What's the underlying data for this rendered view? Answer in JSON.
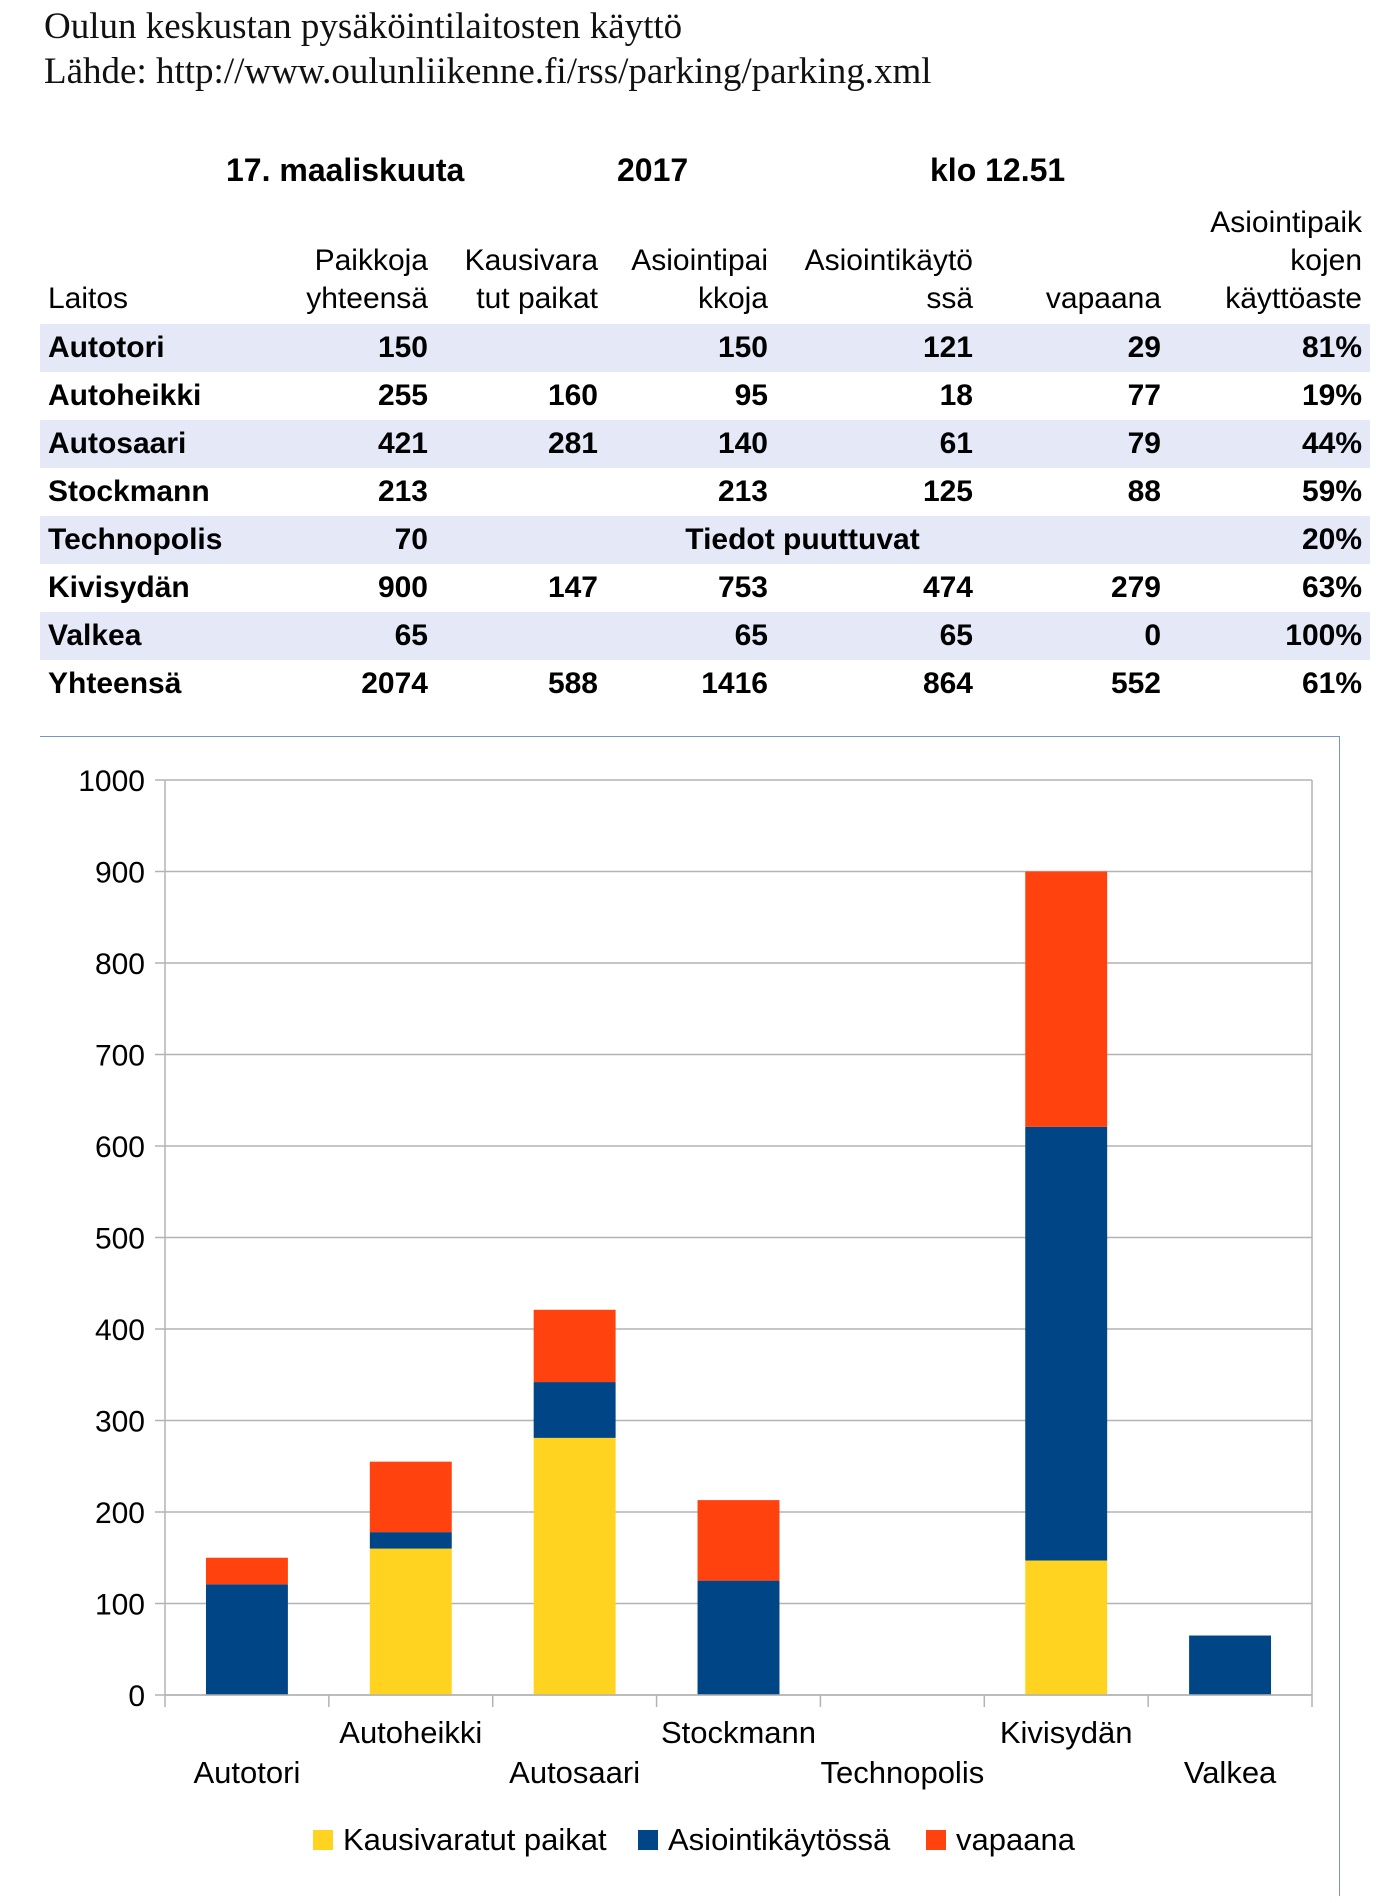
{
  "header": {
    "title": "Oulun keskustan pysäköintilaitosten käyttö",
    "source": "Lähde: http://www.oulunliikenne.fi/rss/parking/parking.xml"
  },
  "dateline": {
    "date": "17. maaliskuuta",
    "year": "2017",
    "time": "klo  12.51"
  },
  "table": {
    "columns": [
      [
        "Laitos"
      ],
      [
        "Paikkoja",
        "yhteensä"
      ],
      [
        "Kausivara",
        "tut paikat"
      ],
      [
        "Asiointipai",
        "kkoja"
      ],
      [
        "Asiointikäytö",
        "ssä"
      ],
      [
        "vapaana"
      ],
      [
        "Asiointipaik",
        "kojen",
        "käyttöaste"
      ]
    ],
    "rows": [
      {
        "name": "Autotori",
        "total": "150",
        "seasonal": "",
        "business": "150",
        "in_use": "121",
        "free": "29",
        "rate": "81%"
      },
      {
        "name": "Autoheikki",
        "total": "255",
        "seasonal": "160",
        "business": "95",
        "in_use": "18",
        "free": "77",
        "rate": "19%"
      },
      {
        "name": "Autosaari",
        "total": "421",
        "seasonal": "281",
        "business": "140",
        "in_use": "61",
        "free": "79",
        "rate": "44%"
      },
      {
        "name": "Stockmann",
        "total": "213",
        "seasonal": "",
        "business": "213",
        "in_use": "125",
        "free": "88",
        "rate": "59%"
      },
      {
        "name": "Technopolis",
        "total": "70",
        "missing_note": "Tiedot puuttuvat",
        "rate": "20%"
      },
      {
        "name": "Kivisydän",
        "total": "900",
        "seasonal": "147",
        "business": "753",
        "in_use": "474",
        "free": "279",
        "rate": "63%"
      },
      {
        "name": "Valkea",
        "total": "65",
        "seasonal": "",
        "business": "65",
        "in_use": "65",
        "free": "0",
        "rate": "100%"
      },
      {
        "name": "Yhteensä",
        "total": "2074",
        "seasonal": "588",
        "business": "1416",
        "in_use": "864",
        "free": "552",
        "rate": "61%"
      }
    ]
  },
  "chart_data": {
    "type": "bar",
    "stacked": true,
    "categories": [
      "Autotori",
      "Autoheikki",
      "Autosaari",
      "Stockmann",
      "Technopolis",
      "Kivisydän",
      "Valkea"
    ],
    "series": [
      {
        "name": "Kausivaratut paikat",
        "color": "#FFD320",
        "values": [
          0,
          160,
          281,
          0,
          0,
          147,
          0
        ]
      },
      {
        "name": "Asiointikäytössä",
        "color": "#004586",
        "values": [
          121,
          18,
          61,
          125,
          0,
          474,
          65
        ]
      },
      {
        "name": "vapaana",
        "color": "#FF420E",
        "values": [
          29,
          77,
          79,
          88,
          0,
          279,
          0
        ]
      }
    ],
    "ylim": [
      0,
      1000
    ],
    "yticks": [
      0,
      100,
      200,
      300,
      400,
      500,
      600,
      700,
      800,
      900,
      1000
    ],
    "grid": true,
    "legend": "bottom"
  }
}
